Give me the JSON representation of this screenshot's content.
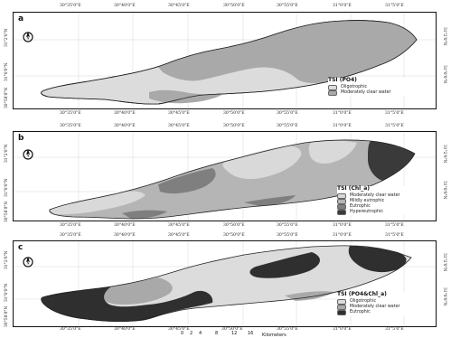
{
  "panels": [
    {
      "letter": "a",
      "legend": {
        "title": "TSI (PO4)",
        "items": [
          {
            "label": "Oligotrophic",
            "color": "#dcdcdc"
          },
          {
            "label": "Moderately clear water",
            "color": "#a9a9a9"
          }
        ]
      },
      "top_ticks": [
        "30°35'0\"E",
        "30°40'0\"E",
        "30°45'0\"E",
        "30°50'0\"E",
        "30°55'0\"E",
        "31°0'0\"E",
        "31°5'0\"E"
      ],
      "bottom_ticks": [
        "30°35'0\"E",
        "30°40'0\"E",
        "30°45'0\"E",
        "30°50'0\"E",
        "30°55'0\"E",
        "31°0'0\"E",
        "31°5'0\"E"
      ],
      "left_lats": [
        "31°2'0\"N",
        "31°0'0\"N",
        "30°58'0\"N"
      ],
      "right_lats": [
        "31°2'0\"N",
        "31°0'0\"N"
      ]
    },
    {
      "letter": "b",
      "legend": {
        "title": "TSI (Chl_a)",
        "items": [
          {
            "label": "Moderately clear water",
            "color": "#d9d9d9"
          },
          {
            "label": "Mildly eutrophic",
            "color": "#b5b5b5"
          },
          {
            "label": "Eutrophic",
            "color": "#7f7f7f"
          },
          {
            "label": "Hypereutrophic",
            "color": "#3a3a3a"
          }
        ]
      },
      "top_ticks": [
        "30°35'0\"E",
        "30°40'0\"E",
        "30°45'0\"E",
        "30°50'0\"E",
        "30°55'0\"E",
        "31°0'0\"E",
        "31°5'0\"E"
      ],
      "bottom_ticks": [
        "30°35'0\"E",
        "30°40'0\"E",
        "30°45'0\"E",
        "30°50'0\"E",
        "30°55'0\"E",
        "31°0'0\"E",
        "31°5'0\"E"
      ],
      "left_lats": [
        "31°2'0\"N",
        "31°0'0\"N",
        "30°58'0\"N"
      ],
      "right_lats": [
        "31°2'0\"N",
        "31°0'0\"N"
      ]
    },
    {
      "letter": "c",
      "legend": {
        "title": "TSI (PO4&Chl_a)",
        "items": [
          {
            "label": "Oligotrophic",
            "color": "#dcdcdc"
          },
          {
            "label": "Moderately clear water",
            "color": "#a9a9a9"
          },
          {
            "label": "Eutrophic",
            "color": "#2f2f2f"
          }
        ]
      },
      "top_ticks": [
        "30°35'0\"E",
        "30°40'0\"E",
        "30°45'0\"E",
        "30°50'0\"E",
        "30°55'0\"E",
        "31°0'0\"E",
        "31°5'0\"E"
      ],
      "bottom_ticks": [
        "30°35'0\"E",
        "30°40'0\"E",
        "30°45'0\"E",
        "30°50'0\"E",
        "30°55'0\"E",
        "31°0'0\"E",
        "31°5'0\"E"
      ],
      "left_lats": [
        "31°2'0\"N",
        "31°0'0\"N",
        "30°58'0\"N"
      ],
      "right_lats": [
        "31°2'0\"N",
        "31°0'0\"N"
      ]
    }
  ],
  "scale_bar": {
    "labels": [
      "0",
      "2",
      "4",
      "8",
      "12",
      "16"
    ],
    "unit": "Kilometers"
  },
  "colors": {
    "light_gray": "#dcdcdc",
    "mid_gray": "#a9a9a9",
    "dark_gray": "#3a3a3a",
    "outline": "#222222"
  },
  "icons": [
    "north-arrow-icon"
  ]
}
